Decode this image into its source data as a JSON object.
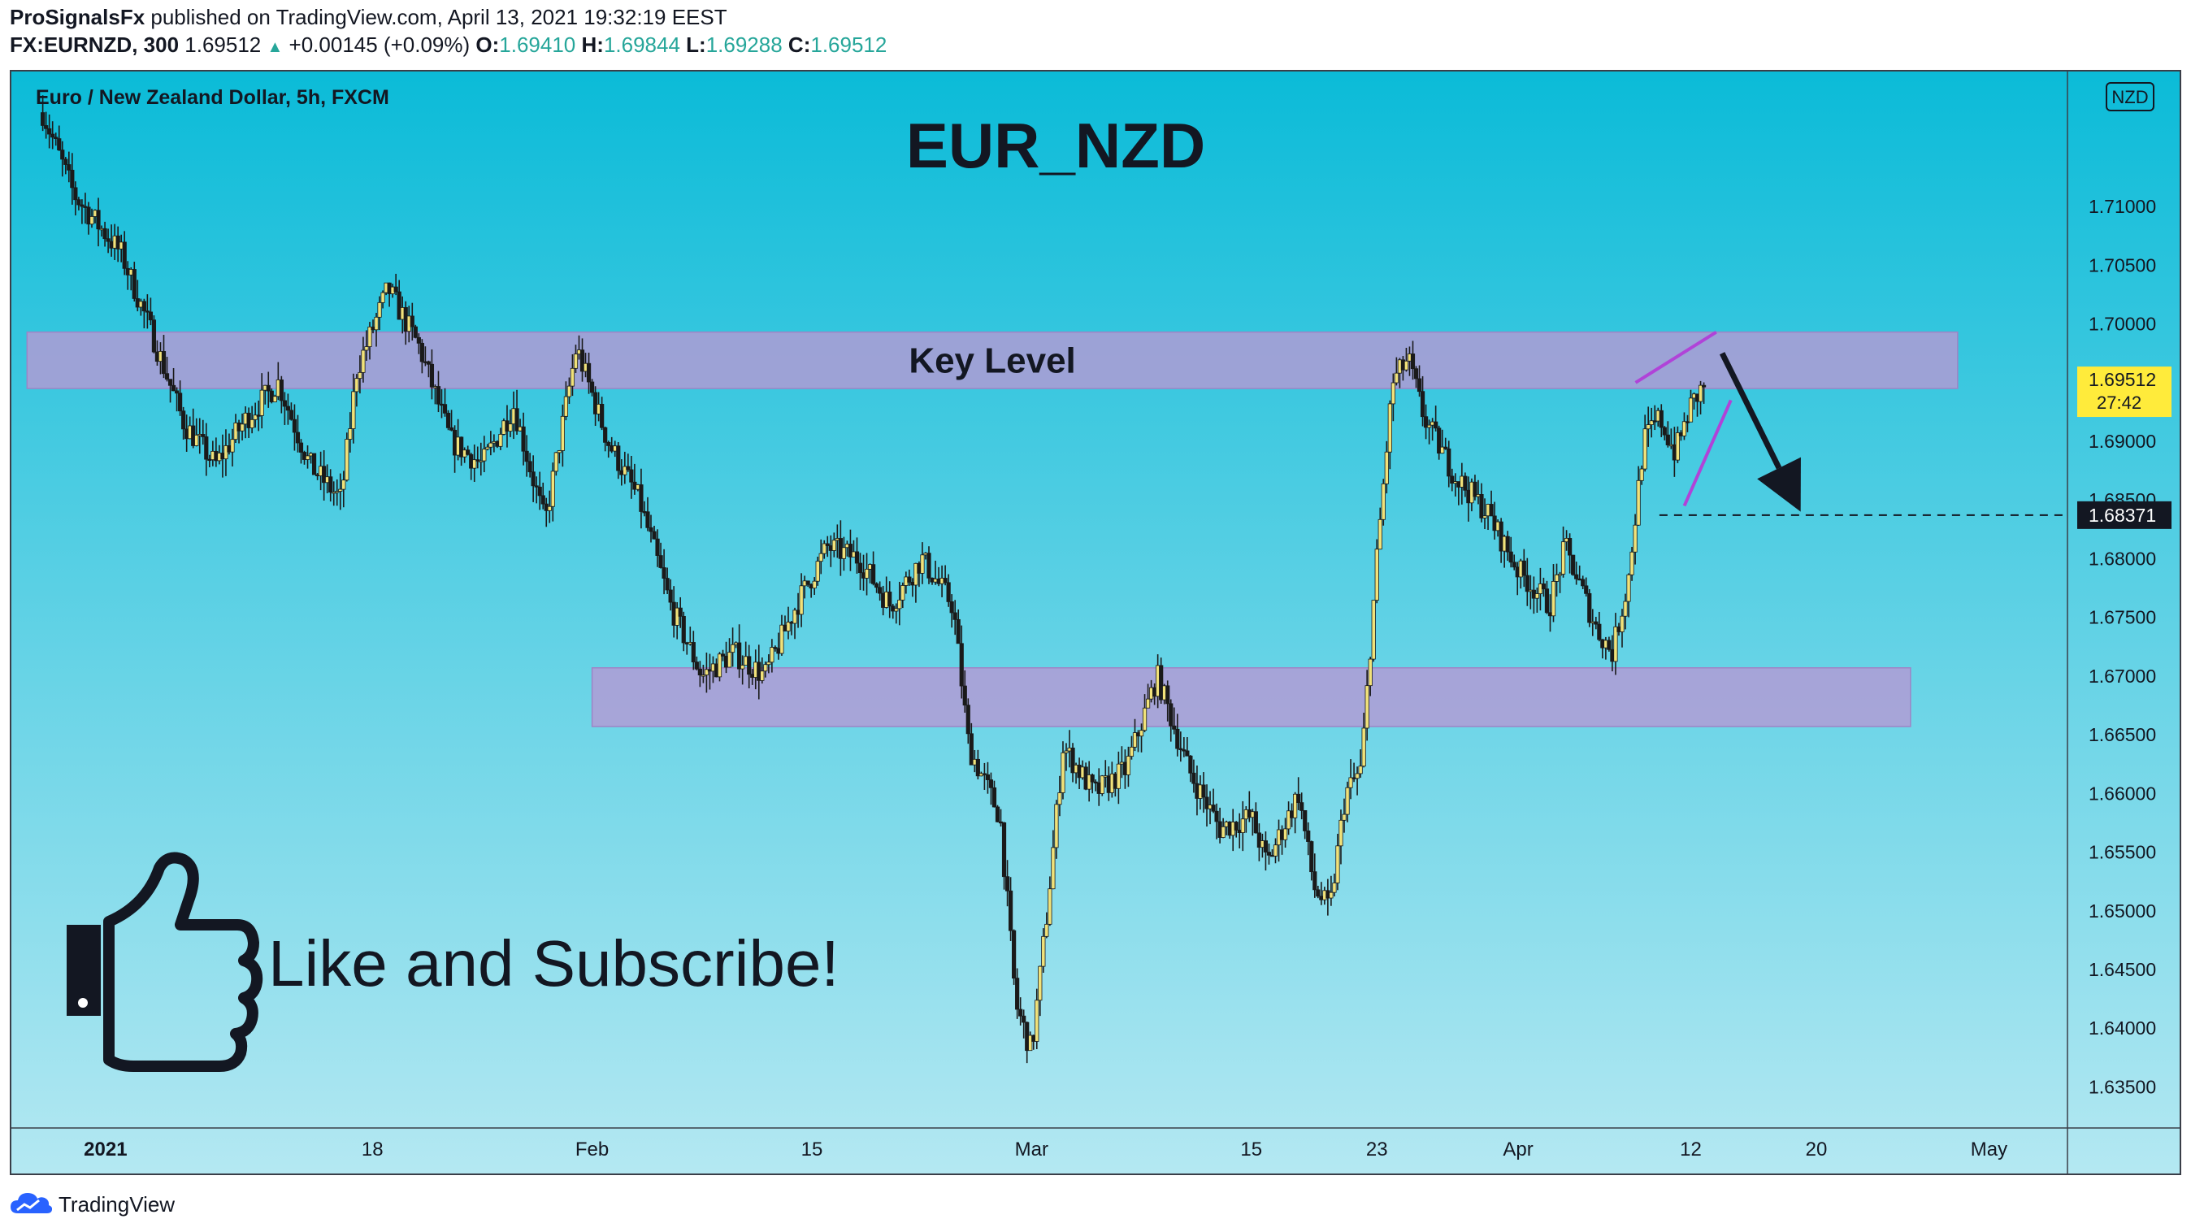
{
  "header": {
    "author": "ProSignalsFx",
    "published_text": "published on TradingView.com, April 13, 2021 19:32:19 EEST",
    "symbol": "FX:EURNZD, 300",
    "last": "1.69512",
    "change": "+0.00145 (+0.09%)",
    "open_label": "O:",
    "open": "1.69410",
    "high_label": "H:",
    "high": "1.69844",
    "low_label": "L:",
    "low": "1.69288",
    "close_label": "C:",
    "close": "1.69512"
  },
  "chart_data": {
    "type": "candlestick",
    "series_title": "Euro / New Zealand Dollar, 5h, FXCM",
    "title": "EUR_NZD",
    "currency_badge": "NZD",
    "y_range": [
      1.6315,
      1.7215
    ],
    "y_ticks": [
      "1.71000",
      "1.70500",
      "1.70000",
      "1.69000",
      "1.68500",
      "1.68000",
      "1.67500",
      "1.67000",
      "1.66500",
      "1.66000",
      "1.65500",
      "1.65000",
      "1.64500",
      "1.64000",
      "1.63500"
    ],
    "x_ticks": [
      {
        "label": "2021",
        "date": "2021-01-01"
      },
      {
        "label": "18",
        "date": "2021-01-18"
      },
      {
        "label": "Feb",
        "date": "2021-02-01"
      },
      {
        "label": "15",
        "date": "2021-02-15"
      },
      {
        "label": "Mar",
        "date": "2021-03-01"
      },
      {
        "label": "15",
        "date": "2021-03-15"
      },
      {
        "label": "23",
        "date": "2021-03-23"
      },
      {
        "label": "Apr",
        "date": "2021-04-01"
      },
      {
        "label": "12",
        "date": "2021-04-12"
      },
      {
        "label": "20",
        "date": "2021-04-20"
      },
      {
        "label": "May",
        "date": "2021-05-01"
      }
    ],
    "price_path": [
      [
        "2020-12-28",
        1.718
      ],
      [
        "2020-12-30",
        1.711
      ],
      [
        "2021-01-02",
        1.706
      ],
      [
        "2021-01-04",
        1.699
      ],
      [
        "2021-01-06",
        1.6915
      ],
      [
        "2021-01-08",
        1.688
      ],
      [
        "2021-01-10",
        1.692
      ],
      [
        "2021-01-12",
        1.695
      ],
      [
        "2021-01-14",
        1.688
      ],
      [
        "2021-01-16",
        1.685
      ],
      [
        "2021-01-17",
        1.696
      ],
      [
        "2021-01-19",
        1.703
      ],
      [
        "2021-01-21",
        1.698
      ],
      [
        "2021-01-23",
        1.69
      ],
      [
        "2021-01-25",
        1.688
      ],
      [
        "2021-01-27",
        1.693
      ],
      [
        "2021-01-29",
        1.683
      ],
      [
        "2021-01-31",
        1.698
      ],
      [
        "2021-02-02",
        1.69
      ],
      [
        "2021-02-04",
        1.685
      ],
      [
        "2021-02-06",
        1.676
      ],
      [
        "2021-02-08",
        1.67
      ],
      [
        "2021-02-10",
        1.672
      ],
      [
        "2021-02-12",
        1.67
      ],
      [
        "2021-02-14",
        1.676
      ],
      [
        "2021-02-16",
        1.681
      ],
      [
        "2021-02-18",
        1.68
      ],
      [
        "2021-02-20",
        1.676
      ],
      [
        "2021-02-22",
        1.68
      ],
      [
        "2021-02-24",
        1.676
      ],
      [
        "2021-02-25",
        1.664
      ],
      [
        "2021-02-27",
        1.658
      ],
      [
        "2021-02-28",
        1.642
      ],
      [
        "2021-03-01",
        1.638
      ],
      [
        "2021-03-02",
        1.65
      ],
      [
        "2021-03-03",
        1.664
      ],
      [
        "2021-03-05",
        1.66
      ],
      [
        "2021-03-07",
        1.662
      ],
      [
        "2021-03-09",
        1.67
      ],
      [
        "2021-03-11",
        1.662
      ],
      [
        "2021-03-13",
        1.657
      ],
      [
        "2021-03-15",
        1.658
      ],
      [
        "2021-03-16",
        1.654
      ],
      [
        "2021-03-18",
        1.66
      ],
      [
        "2021-03-19",
        1.652
      ],
      [
        "2021-03-20",
        1.65
      ],
      [
        "2021-03-21",
        1.66
      ],
      [
        "2021-03-22",
        1.662
      ],
      [
        "2021-03-23",
        1.68
      ],
      [
        "2021-03-24",
        1.695
      ],
      [
        "2021-03-25",
        1.697
      ],
      [
        "2021-03-26",
        1.692
      ],
      [
        "2021-03-28",
        1.687
      ],
      [
        "2021-03-30",
        1.684
      ],
      [
        "2021-04-01",
        1.679
      ],
      [
        "2021-04-03",
        1.676
      ],
      [
        "2021-04-04",
        1.681
      ],
      [
        "2021-04-06",
        1.674
      ],
      [
        "2021-04-07",
        1.672
      ],
      [
        "2021-04-08",
        1.678
      ],
      [
        "2021-04-09",
        1.69
      ],
      [
        "2021-04-10",
        1.692
      ],
      [
        "2021-04-11",
        1.689
      ],
      [
        "2021-04-12",
        1.693
      ],
      [
        "2021-04-13",
        1.6951
      ]
    ],
    "zones": [
      {
        "label": "Key Level",
        "from_date": "2020-12-27",
        "to_date": "2021-04-29",
        "low": 1.6945,
        "high": 1.6993
      },
      {
        "label": "",
        "from_date": "2021-02-01",
        "to_date": "2021-04-26",
        "low": 1.6657,
        "high": 1.6707
      }
    ],
    "wedge": {
      "start_date": "2021-04-09",
      "end_date": "2021-04-13",
      "upper": [
        1.695,
        1.6993
      ],
      "lower": [
        1.6845,
        1.6935
      ]
    },
    "forecast_arrow": {
      "from_date": "2021-04-14",
      "from_price": 1.6975,
      "to_date": "2021-04-19",
      "to_price": 1.684
    },
    "target_line": {
      "from_date": "2021-04-10",
      "price": 1.68371,
      "label": "1.68371"
    },
    "last_price_label": {
      "price": "1.69512",
      "countdown": "27:42"
    },
    "annotation_cta": "Like and Subscribe!"
  },
  "colors": {
    "bg_top": "#0bbbd8",
    "bg_bottom": "#b4e8f2",
    "candle_up": "#f1e27a",
    "candle_down": "#1a1a1a",
    "zone": "#b39ad4",
    "wedge": "#b043d8",
    "last_price": "#ffeb3b",
    "text": "#131722"
  },
  "footer": {
    "brand": "TradingView"
  }
}
